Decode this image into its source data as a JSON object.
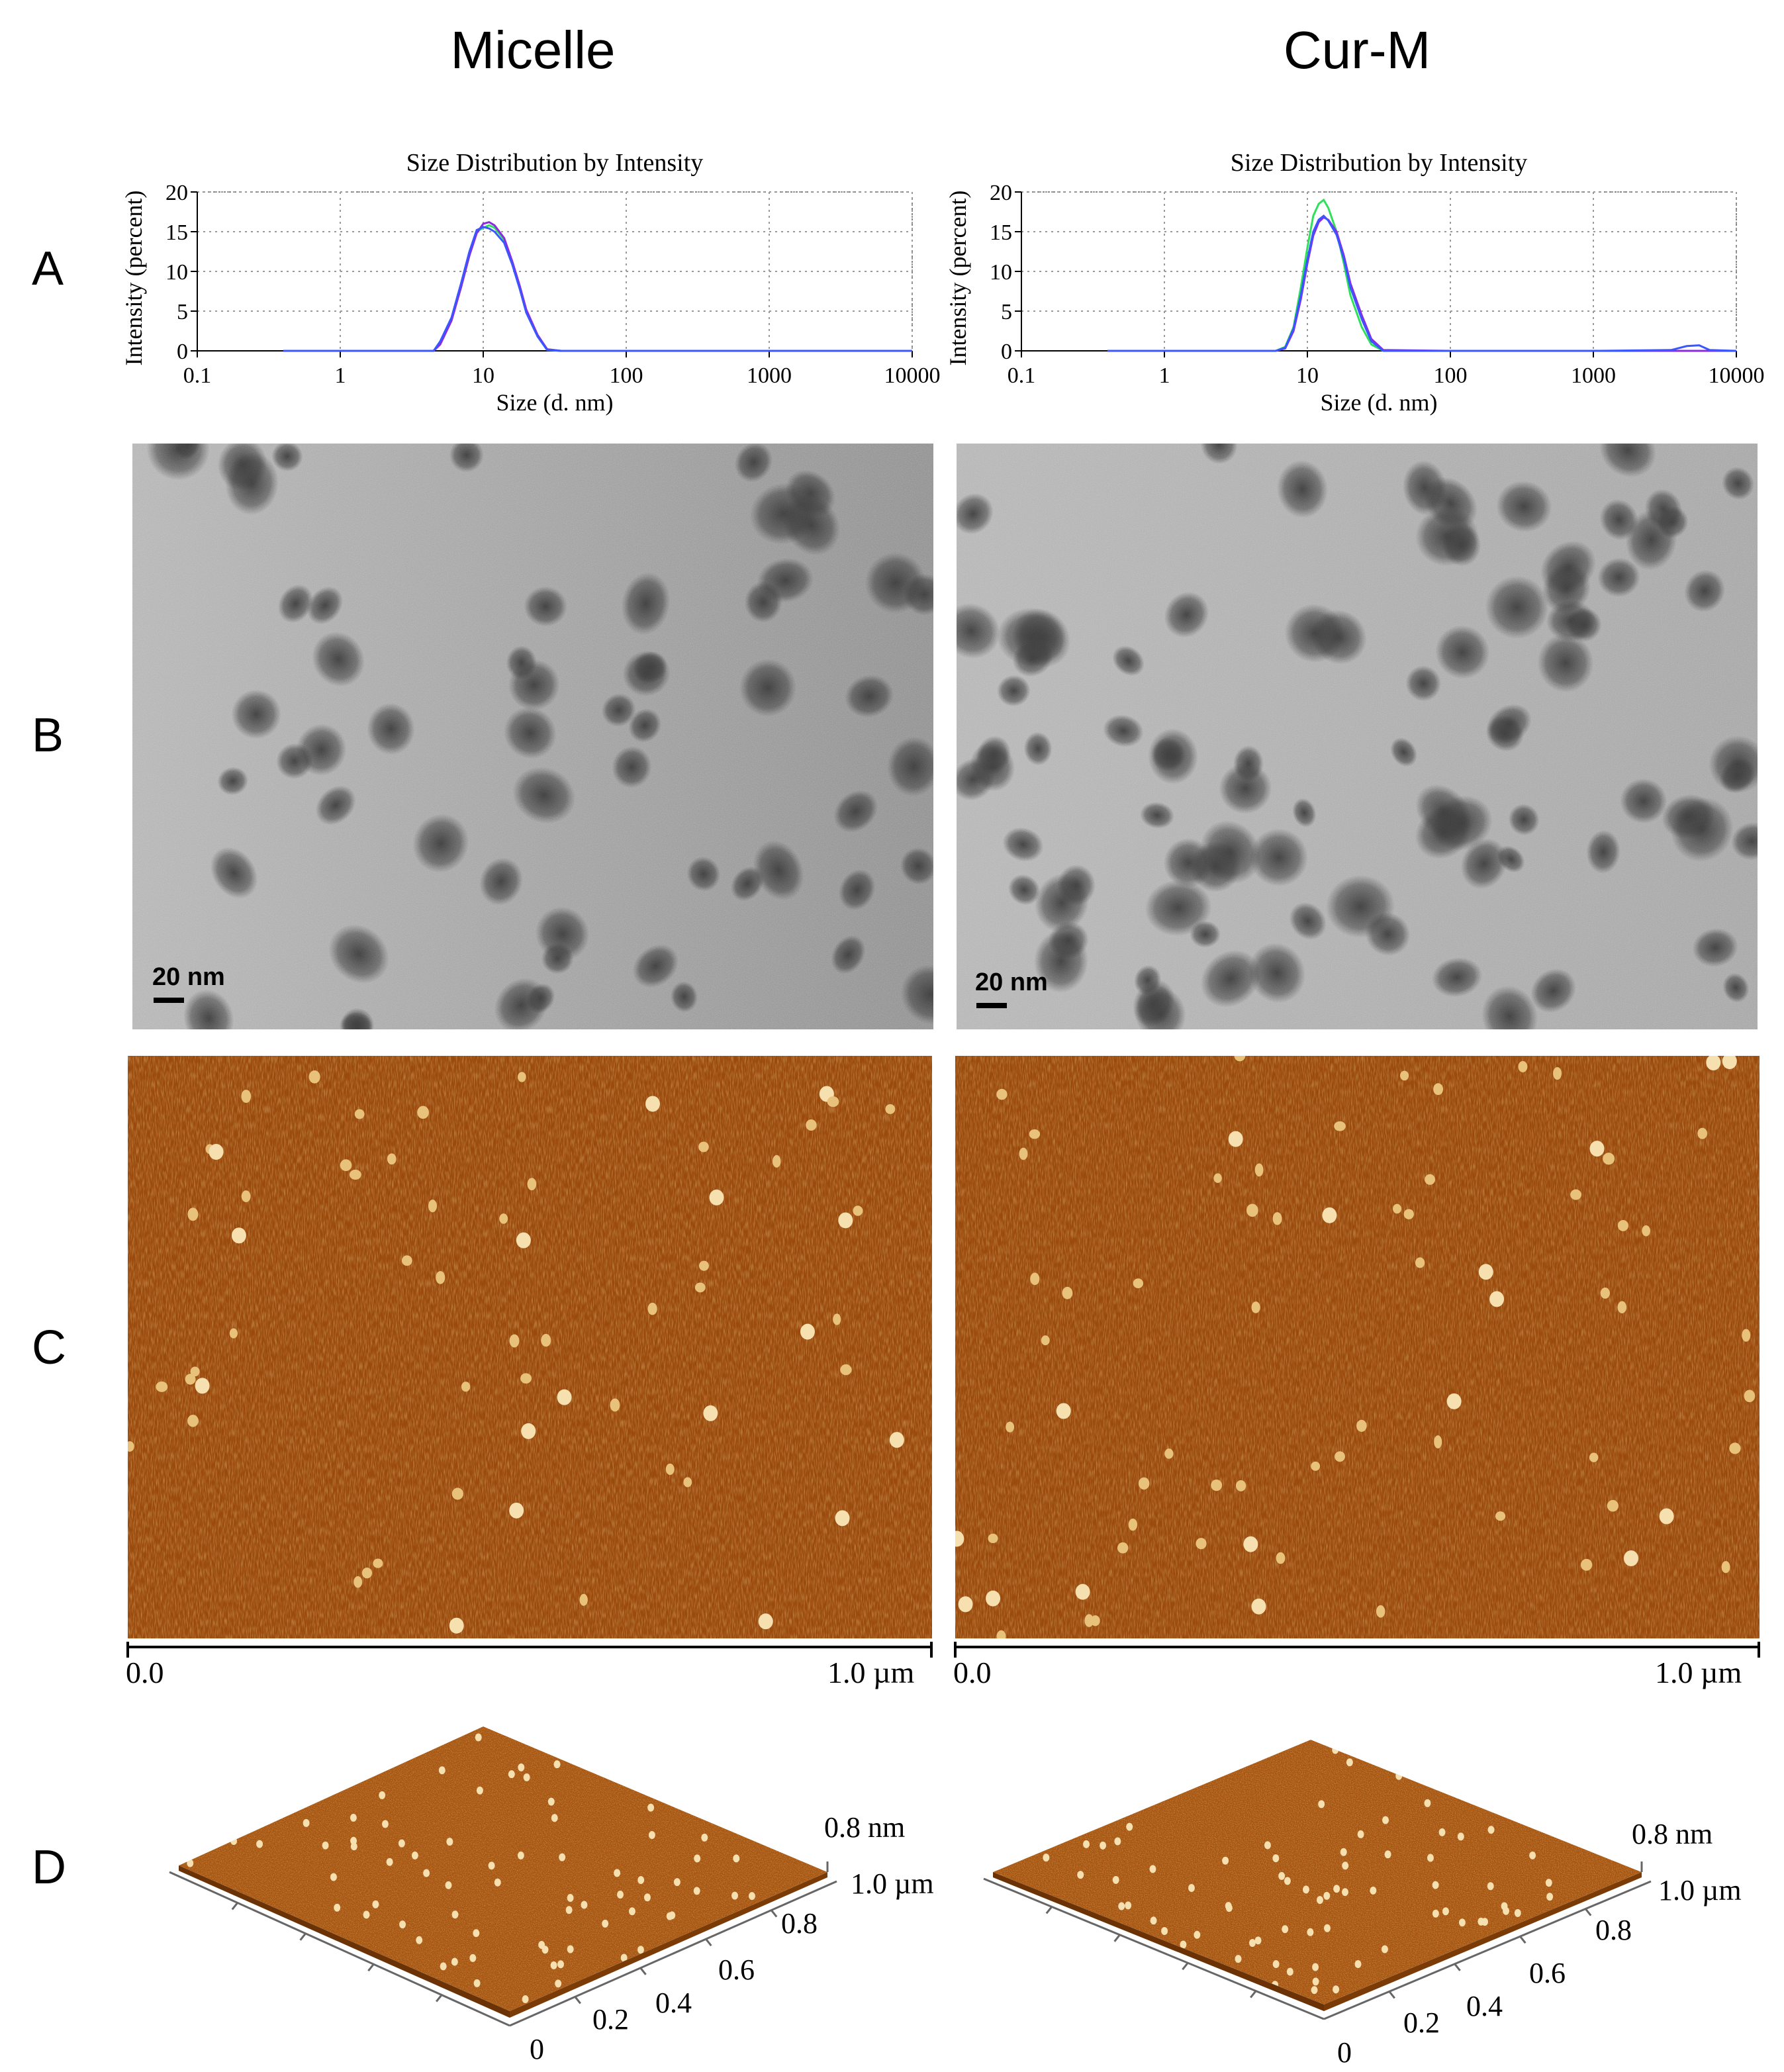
{
  "columns": [
    "Micelle",
    "Cur-M"
  ],
  "row_labels": [
    "A",
    "B",
    "C",
    "D"
  ],
  "colors": {
    "afm_base": "#9a4a0c",
    "afm_dark": "#7d3a06",
    "afm_light": "#f6e0b0",
    "tem_bg": "#a9a9a9",
    "tem_particle": "#3a3a3a",
    "series_green": "#2ee05a",
    "series_purple": "#8a2be2",
    "series_blue": "#3a57ff",
    "series_teal": "#1aa0a0"
  },
  "panel_a": {
    "title": "Size Distribution by Intensity",
    "xlabel": "Size (d. nm)",
    "ylabel": "Intensity (percent)"
  },
  "chart_data": [
    {
      "type": "line",
      "panel": "Micelle",
      "title": "Size Distribution by Intensity",
      "xlabel": "Size (d. nm)",
      "ylabel": "Intensity (percent)",
      "xscale": "log",
      "xlim": [
        0.1,
        10000
      ],
      "ylim": [
        0,
        20
      ],
      "xticks": [
        "0.1",
        "1",
        "10",
        "100",
        "1000",
        "10000"
      ],
      "yticks": [
        "0",
        "5",
        "10",
        "15",
        "20"
      ],
      "grid": true,
      "x": [
        0.4,
        1,
        3,
        4.5,
        5,
        6,
        7,
        8,
        9,
        10,
        11,
        12,
        14,
        16,
        18,
        20,
        24,
        28,
        35,
        100,
        1000,
        10000
      ],
      "series": [
        {
          "values": [
            0,
            0,
            0,
            0,
            1,
            4,
            8,
            12,
            15,
            15.5,
            15.8,
            15.5,
            14,
            11,
            8,
            5,
            2,
            0.2,
            0,
            0,
            0,
            0
          ]
        },
        {
          "values": [
            0,
            0,
            0,
            0,
            0.8,
            3.8,
            8,
            12,
            14.8,
            16,
            16.2,
            15.8,
            14.2,
            11.2,
            8.2,
            5.2,
            2,
            0.2,
            0,
            0,
            0,
            0
          ]
        },
        {
          "values": [
            0,
            0,
            0,
            0,
            1.2,
            4.2,
            8.5,
            12.5,
            15.2,
            15.6,
            15.4,
            15,
            13.6,
            10.8,
            7.8,
            4.8,
            1.8,
            0.1,
            0,
            0,
            0,
            0
          ]
        }
      ]
    },
    {
      "type": "line",
      "panel": "Cur-M",
      "title": "Size Distribution by Intensity",
      "xlabel": "Size (d. nm)",
      "ylabel": "Intensity (percent)",
      "xscale": "log",
      "xlim": [
        0.1,
        10000
      ],
      "ylim": [
        0,
        20
      ],
      "xticks": [
        "0.1",
        "1",
        "10",
        "100",
        "1000",
        "10000"
      ],
      "yticks": [
        "0",
        "5",
        "10",
        "15",
        "20"
      ],
      "grid": true,
      "x": [
        0.4,
        1,
        3,
        6,
        7,
        8,
        9,
        10,
        11,
        12,
        13,
        14,
        16,
        18,
        20,
        24,
        28,
        34,
        100,
        1000,
        3500,
        4500,
        5500,
        6500,
        10000
      ],
      "series": [
        {
          "values": [
            0,
            0,
            0,
            0,
            0.5,
            3,
            8,
            13,
            17,
            18.5,
            19,
            18,
            15,
            11,
            7,
            3,
            0.8,
            0,
            0,
            0,
            0,
            0,
            0,
            0,
            0
          ]
        },
        {
          "values": [
            0,
            0,
            0,
            0,
            0.3,
            2.5,
            6.5,
            11,
            14.5,
            16.2,
            16.8,
            16.5,
            15,
            12,
            8.5,
            4.5,
            1.5,
            0.1,
            0,
            0,
            0,
            0,
            0,
            0,
            0
          ]
        },
        {
          "values": [
            0,
            0,
            0,
            0,
            0.4,
            2.8,
            7,
            11.5,
            15,
            16.5,
            17,
            16.4,
            14.6,
            11.6,
            8,
            4,
            1.2,
            0,
            0,
            0,
            0.1,
            0.6,
            0.7,
            0.1,
            0
          ]
        }
      ]
    }
  ],
  "panel_b": {
    "scalebar_label": "20 nm"
  },
  "panel_c": {
    "axis_start": "0.0",
    "axis_end": "1.0 µm"
  },
  "panel_d": {
    "z_label": "0.8 nm",
    "xy_label": "1.0 µm",
    "ticks": [
      "0.8",
      "0.6",
      "0.4",
      "0.2",
      "0"
    ]
  }
}
